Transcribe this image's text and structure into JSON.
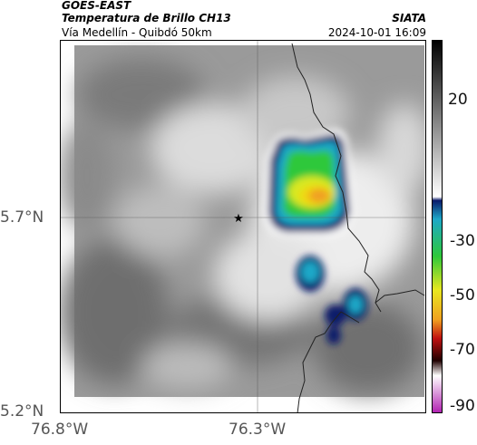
{
  "header": {
    "satellite": "GOES-EAST",
    "product": "Temperatura de Brillo CH13",
    "route": "Vía Medellín - Quibdó 50km",
    "org": "SIATA",
    "datetime": "2024-10-01 16:09"
  },
  "axes": {
    "lat_labels": [
      "5.7°N",
      "5.2°N"
    ],
    "lon_labels": [
      "76.8°W",
      "76.3°W"
    ]
  },
  "colorbar": {
    "tick_labels": [
      "20",
      "-30",
      "-50",
      "-70",
      "-90"
    ]
  },
  "markers": {
    "star": "star-icon"
  },
  "colors": {
    "cold_core": "#f0a020",
    "warm_cloud": "#ffffff"
  }
}
